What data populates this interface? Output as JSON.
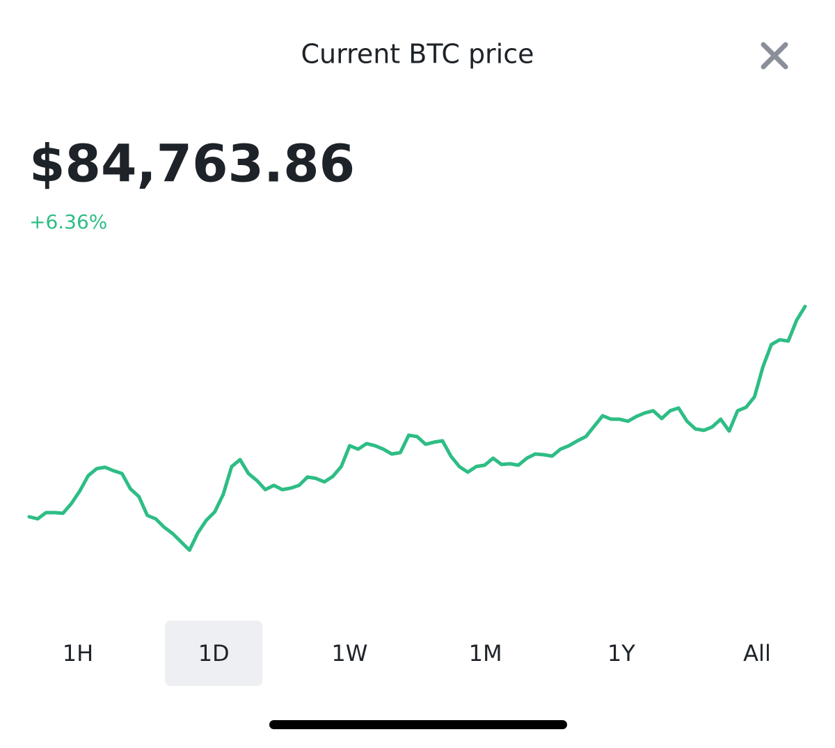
{
  "header": {
    "title": "Current BTC price"
  },
  "price": "$84,763.86",
  "change": "+6.36%",
  "chart_data": {
    "type": "line",
    "color": "#2ebd85",
    "values": [
      79695,
      79645,
      79796,
      79796,
      79779,
      80014,
      80317,
      80686,
      80854,
      80888,
      80804,
      80737,
      80367,
      80182,
      79729,
      79645,
      79443,
      79292,
      79090,
      78889,
      79309,
      79611,
      79813,
      80233,
      80905,
      81073,
      80737,
      80569,
      80350,
      80451,
      80350,
      80384,
      80451,
      80653,
      80619,
      80535,
      80669,
      80905,
      81409,
      81325,
      81459,
      81409,
      81325,
      81207,
      81241,
      81661,
      81627,
      81442,
      81493,
      81526,
      81157,
      80905,
      80770,
      80905,
      80938,
      81106,
      80955,
      80972,
      80938,
      81106,
      81207,
      81190,
      81157,
      81325,
      81409,
      81526,
      81627,
      81879,
      82131,
      82047,
      82047,
      81997,
      82114,
      82198,
      82249,
      82064,
      82249,
      82316,
      81997,
      81812,
      81778,
      81862,
      82047,
      81761,
      82249,
      82333,
      82585,
      83307,
      83845,
      83962,
      83929,
      84433,
      84764
    ]
  },
  "tabs": {
    "items": [
      "1H",
      "1D",
      "1W",
      "1M",
      "1Y",
      "All"
    ],
    "selected": "1D"
  }
}
